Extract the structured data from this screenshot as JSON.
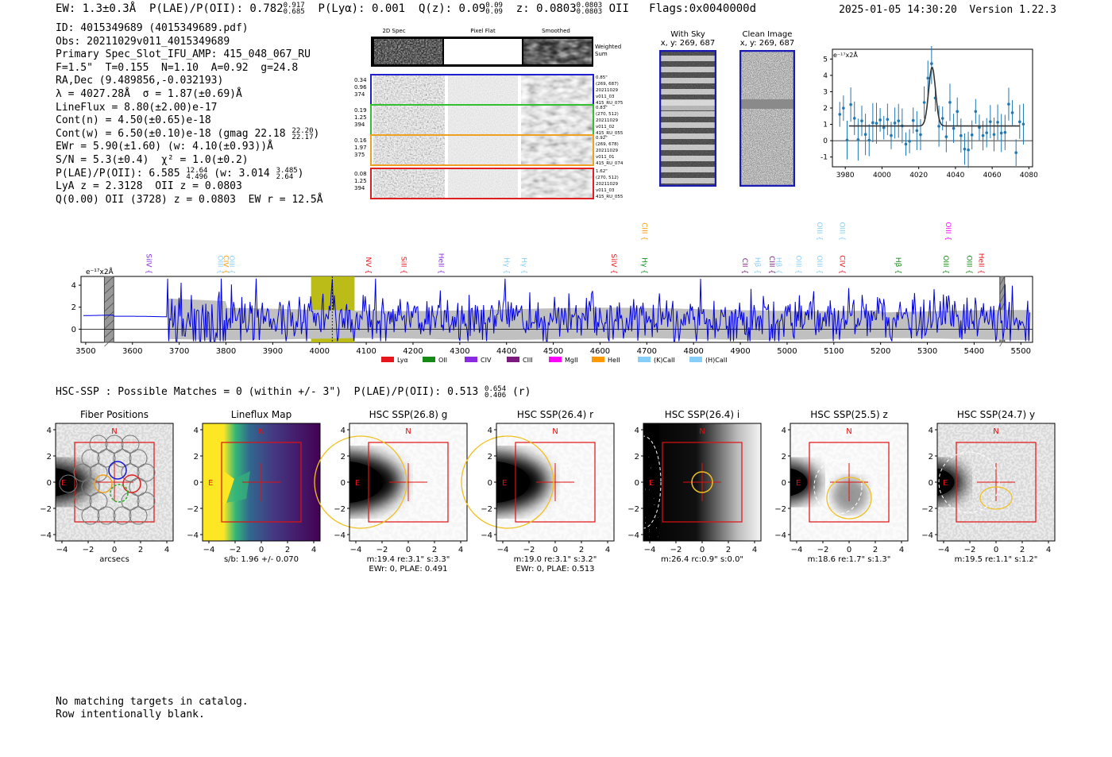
{
  "header": {
    "left": "EW: 1.3±0.3Å  P(LAE)/P(OII): 0.782",
    "left_sup": "0.917",
    "left_sub": "0.685",
    "plya": "  P(Lyα): 0.001  Q(z): 0.09",
    "qz_sup": "0.09",
    "qz_sub": "0.09",
    "z_text": "  z: 0.0803",
    "z_sup": "0.0803",
    "z_sub": "0.0803",
    "tail": " OII   Flags:0x0040000d",
    "right": "2025-01-05 14:30:20  Version 1.22.3"
  },
  "info": {
    "id": "ID: 4015349689 (4015349689.pdf)",
    "obs": "Obs: 20211029v011_4015349689",
    "slot": "Primary Spec_Slot_IFU_AMP: 415_048_067_RU",
    "f": "F=1.5\"  T=0.155  N=1.10  A=0.92  g=24.8",
    "radec": "RA,Dec (9.489856,-0.032193)",
    "lambda": "λ = 4027.28Å  σ = 1.87(±0.69)Å",
    "lineflux": "LineFlux = 8.80(±2.00)e-17",
    "contn": "Cont(n) = 4.50(±0.65)e-18",
    "contw": "Cont(w) = 6.50(±0.10)e-18 (gmag 22.18",
    "contw_sup": "22.20",
    "contw_sub": "22.17",
    "ewr": "EWr = 5.90(±1.60) (w: 4.10(±0.93))Å",
    "sn": "S/N = 5.3(±0.4)  χ² = 1.0(±0.2)",
    "plae": "P(LAE)/P(OII): 6.585",
    "plae_sup": "12.64",
    "plae_sub": "4.496",
    "plae_w": " (w: 3.014",
    "plae_w_sup": "3.485",
    "plae_w_sub": "2.64",
    "lya": "LyA z = 2.3128  OII z = 0.0803",
    "q": "Q(0.00) OII (3728) z = 0.0803  EW r = 12.5Å"
  },
  "cutouts": {
    "col_labels": [
      "2D Spec",
      "Pixel Flat",
      "Smoothed"
    ],
    "weighted": "Weighted Sum",
    "rows": [
      {
        "nums": [
          "0.34",
          "0.96",
          "374"
        ],
        "meta": [
          "0.85\"",
          "(269, 687)",
          "20211029",
          "v011_03",
          "415_RU_075"
        ],
        "color": "#2020d0"
      },
      {
        "nums": [
          "0.19",
          "1.25",
          "394"
        ],
        "meta": [
          "0.83\"",
          "(270, 512)",
          "20211029",
          "v011_02",
          "415_RU_055"
        ],
        "color": "#30c030"
      },
      {
        "nums": [
          "0.16",
          "1.97",
          "375"
        ],
        "meta": [
          "0.92\"",
          "(269, 678)",
          "20211029",
          "v011_01",
          "415_RU_074"
        ],
        "color": "#f0a020"
      },
      {
        "nums": [
          "0.08",
          "1.25",
          "394"
        ],
        "meta": [
          "1.62\"",
          "(270, 512)",
          "20211029",
          "v011_03",
          "415_RU_055"
        ],
        "color": "#e02020"
      }
    ]
  },
  "sky": {
    "title1": "With Sky",
    "title2": "x, y: 269, 687"
  },
  "clean": {
    "title1": "Clean Image",
    "title2": "x, y: 269, 687"
  },
  "zoom_chart": {
    "type": "line",
    "ylabel": "e⁻¹⁷x2Å",
    "xlim": [
      3973,
      4082
    ],
    "ylim": [
      -1.6,
      5.6
    ],
    "xticks": [
      3980,
      4000,
      4020,
      4040,
      4060,
      4080
    ],
    "yticks": [
      -1,
      0,
      1,
      2,
      3,
      4,
      5
    ],
    "fit": {
      "center": 4027.28,
      "sigma": 1.87,
      "amp": 3.6,
      "continuum": 0.9,
      "x0": 3982,
      "x1": 4075
    }
  },
  "chart_data": {
    "type": "line",
    "ylabel": "e⁻¹⁷x2Å",
    "xlim": [
      3490,
      5525
    ],
    "ylim": [
      -1.2,
      4.8
    ],
    "xticks": [
      3500,
      3600,
      3700,
      3800,
      3900,
      4000,
      4100,
      4200,
      4300,
      4400,
      4500,
      4600,
      4700,
      4800,
      4900,
      5000,
      5100,
      5200,
      5300,
      5400,
      5500
    ],
    "yticks": [
      0,
      2,
      4
    ],
    "line_center": 4027.28,
    "highlight": [
      3982,
      4075
    ],
    "hatched": [
      [
        3540,
        3560
      ],
      [
        5455,
        5465
      ]
    ],
    "legend": [
      {
        "name": "Lyα",
        "color": "#e8141c"
      },
      {
        "name": "OII",
        "color": "#168a16"
      },
      {
        "name": "CIV",
        "color": "#8a2be2"
      },
      {
        "name": "CIII",
        "color": "#7d1a7d"
      },
      {
        "name": "MgII",
        "color": "#ff00ff"
      },
      {
        "name": "HeII",
        "color": "#ff9900"
      },
      {
        "name": "(K)CaII",
        "color": "#87cefa"
      },
      {
        "name": "(H)CaII",
        "color": "#87cefa"
      }
    ],
    "line_labels": [
      {
        "label": "SiIV",
        "x": 3630,
        "color": "#8a2be2",
        "row": 0
      },
      {
        "label": "OIII",
        "x": 3783,
        "color": "#87cefa",
        "row": 0
      },
      {
        "label": "CIV",
        "x": 3795,
        "color": "#ff9900",
        "row": 0
      },
      {
        "label": "OIII",
        "x": 3808,
        "color": "#87cefa",
        "row": 0
      },
      {
        "label": "NV",
        "x": 4100,
        "color": "#e8141c",
        "row": 0
      },
      {
        "label": "SiII",
        "x": 4175,
        "color": "#e8141c",
        "row": 0
      },
      {
        "label": "HeII",
        "x": 4255,
        "color": "#8a2be2",
        "row": 0
      },
      {
        "label": "Hγ",
        "x": 4395,
        "color": "#87cefa",
        "row": 0
      },
      {
        "label": "Hγ",
        "x": 4433,
        "color": "#87cefa",
        "row": 0
      },
      {
        "label": "SiIV",
        "x": 4625,
        "color": "#e8141c",
        "row": 0
      },
      {
        "label": "CIII",
        "x": 4690,
        "color": "#ff9900",
        "row": 1
      },
      {
        "label": "Hγ",
        "x": 4690,
        "color": "#168a16",
        "row": 0
      },
      {
        "label": "CII",
        "x": 4905,
        "color": "#7d1a7d",
        "row": 0
      },
      {
        "label": "Hβ",
        "x": 4932,
        "color": "#87cefa",
        "row": 0
      },
      {
        "label": "CIII",
        "x": 4963,
        "color": "#7d1a7d",
        "row": 0
      },
      {
        "label": "Hβ",
        "x": 4977,
        "color": "#87cefa",
        "row": 0
      },
      {
        "label": "OIII",
        "x": 5020,
        "color": "#87cefa",
        "row": 0
      },
      {
        "label": "OIII",
        "x": 5065,
        "color": "#87cefa",
        "row": 1
      },
      {
        "label": "OIII",
        "x": 5065,
        "color": "#87cefa",
        "row": 0
      },
      {
        "label": "OIII",
        "x": 5113,
        "color": "#87cefa",
        "row": 1
      },
      {
        "label": "CIV",
        "x": 5113,
        "color": "#e8141c",
        "row": 0
      },
      {
        "label": "Hβ",
        "x": 5233,
        "color": "#168a16",
        "row": 0
      },
      {
        "label": "OIII",
        "x": 5340,
        "color": "#ff00ff",
        "row": 1
      },
      {
        "label": "OIII",
        "x": 5335,
        "color": "#168a16",
        "row": 0
      },
      {
        "label": "OIII",
        "x": 5385,
        "color": "#168a16",
        "row": 0
      },
      {
        "label": "HeII",
        "x": 5410,
        "color": "#e8141c",
        "row": 0
      }
    ]
  },
  "hsc": {
    "title": "HSC-SSP : Possible Matches = 0 (within +/- 3\")  P(LAE)/P(OII): 0.513",
    "title_sup": "0.654",
    "title_sub": "0.406",
    "title_tail": " (r)",
    "panels": [
      {
        "title": "Fiber Positions",
        "cap1": "arcsecs",
        "cap2": ""
      },
      {
        "title": "Lineflux Map",
        "cap1": "s/b: 1.96 +/- 0.070",
        "cap2": ""
      },
      {
        "title": "HSC SSP(26.8) g",
        "cap1": "m:19.4  re:3.1\"  s:3.3\"",
        "cap2": "EWr: 0, PLAE: 0.491"
      },
      {
        "title": "HSC SSP(26.4) r",
        "cap1": "m:19.0  re:3.1\"  s:3.2\"",
        "cap2": "EWr: 0, PLAE: 0.513"
      },
      {
        "title": "HSC SSP(26.4) i",
        "cap1": "m:26.4 rc:0.9\"  s:0.0\"",
        "cap2": ""
      },
      {
        "title": "HSC SSP(25.5) z",
        "cap1": "m:18.6  re:1.7\"  s:1.3\"",
        "cap2": ""
      },
      {
        "title": "HSC SSP(24.7) y",
        "cap1": "m:19.5  re:1.1\"  s:1.2\"",
        "cap2": ""
      }
    ],
    "ticks": [
      "−4",
      "−2",
      "0",
      "2",
      "4"
    ],
    "north": "N",
    "east": "E"
  },
  "footer": {
    "line1": "No matching targets in catalog.",
    "line2": "Row intentionally blank."
  }
}
